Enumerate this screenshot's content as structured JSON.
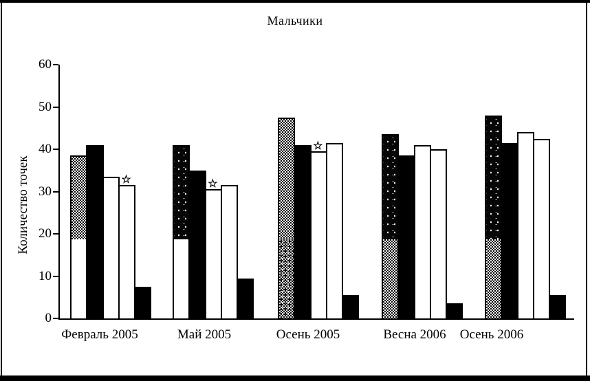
{
  "page": {
    "type": "scanned-bar-chart",
    "background_color": "#ffffff",
    "ink_color": "#000000"
  },
  "chart_data": {
    "type": "bar",
    "title": "Мальчики",
    "xlabel": "",
    "ylabel": "Количество точек",
    "ylim": [
      0,
      60
    ],
    "yticks": [
      0,
      10,
      20,
      30,
      40,
      50,
      60
    ],
    "grid": "off",
    "legend": "none",
    "categories": [
      "Февраль 2005",
      "Май 2005",
      "Осень 2005",
      "Весна 2006",
      "Осень 2006"
    ],
    "series": [
      {
        "name": "bar-1-hatched-gray",
        "fill": "hatched",
        "values": [
          38.5,
          41,
          47.5,
          43.5,
          48
        ],
        "segment_boundary": 19,
        "segment_fills": [
          {
            "top": "checker",
            "bottom": "white"
          },
          {
            "top": "speckle",
            "bottom": "white"
          },
          {
            "top": "checker",
            "bottom": "noise"
          },
          {
            "top": "speckle",
            "bottom": "checker"
          },
          {
            "top": "speckle",
            "bottom": "checker"
          }
        ]
      },
      {
        "name": "bar-2-black",
        "fill": "black",
        "values": [
          41,
          35,
          41,
          38.5,
          41.5
        ]
      },
      {
        "name": "bar-3-white",
        "fill": "white",
        "values": [
          33.5,
          30.5,
          39.5,
          41,
          44
        ]
      },
      {
        "name": "bar-4-white",
        "fill": "white",
        "values": [
          31.5,
          31.5,
          41.5,
          40,
          42.5
        ]
      },
      {
        "name": "bar-5-black",
        "fill": "black",
        "values": [
          7.5,
          9.5,
          5.5,
          3.5,
          5.5
        ]
      }
    ],
    "annotations": [
      {
        "symbol": "☆",
        "category_index": 0,
        "series_index": 3
      },
      {
        "symbol": "☆",
        "category_index": 1,
        "series_index": 2
      },
      {
        "symbol": "☆",
        "category_index": 2,
        "series_index": 2
      }
    ]
  }
}
